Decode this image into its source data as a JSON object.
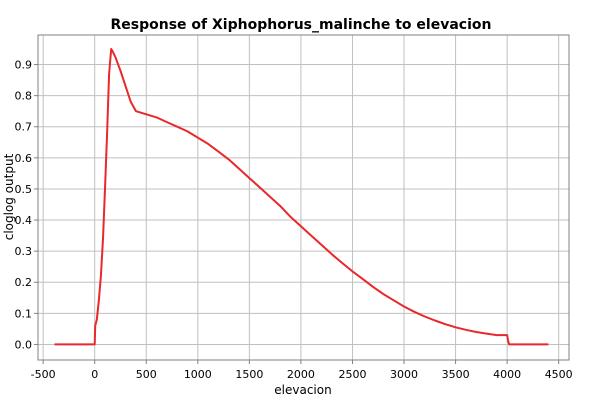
{
  "chart_data": {
    "type": "line",
    "title": "Response of Xiphophorus_malinche to elevacion",
    "xlabel": "elevacion",
    "ylabel": "cloglog output",
    "xlim": [
      -550,
      4600
    ],
    "ylim": [
      -0.05,
      0.995
    ],
    "x_ticks": [
      -500,
      0,
      500,
      1000,
      1500,
      2000,
      2500,
      3000,
      3500,
      4000,
      4500
    ],
    "y_ticks": [
      0.0,
      0.1,
      0.2,
      0.3,
      0.4,
      0.5,
      0.6,
      0.7,
      0.8,
      0.9
    ],
    "grid": true,
    "series": [
      {
        "color": "#e8282a",
        "x": [
          -390,
          -200,
          0,
          5,
          20,
          40,
          60,
          80,
          100,
          120,
          140,
          160,
          170,
          200,
          250,
          300,
          350,
          400,
          500,
          600,
          700,
          800,
          900,
          1000,
          1100,
          1200,
          1300,
          1400,
          1500,
          1600,
          1700,
          1800,
          1900,
          2000,
          2100,
          2200,
          2300,
          2400,
          2500,
          2600,
          2700,
          2800,
          2900,
          3000,
          3100,
          3200,
          3300,
          3400,
          3500,
          3600,
          3700,
          3800,
          3900,
          4000,
          4010,
          4020,
          4100,
          4200,
          4300,
          4400
        ],
        "y": [
          0.0,
          0.0,
          0.0,
          0.06,
          0.08,
          0.14,
          0.22,
          0.34,
          0.5,
          0.68,
          0.87,
          0.95,
          0.945,
          0.925,
          0.88,
          0.83,
          0.78,
          0.75,
          0.74,
          0.73,
          0.715,
          0.7,
          0.685,
          0.665,
          0.645,
          0.62,
          0.595,
          0.565,
          0.535,
          0.505,
          0.475,
          0.445,
          0.41,
          0.38,
          0.35,
          0.32,
          0.29,
          0.262,
          0.235,
          0.21,
          0.185,
          0.162,
          0.142,
          0.122,
          0.105,
          0.09,
          0.077,
          0.065,
          0.055,
          0.047,
          0.04,
          0.035,
          0.03,
          0.03,
          0.01,
          0.0,
          0.0,
          0.0,
          0.0,
          0.0
        ]
      }
    ]
  }
}
